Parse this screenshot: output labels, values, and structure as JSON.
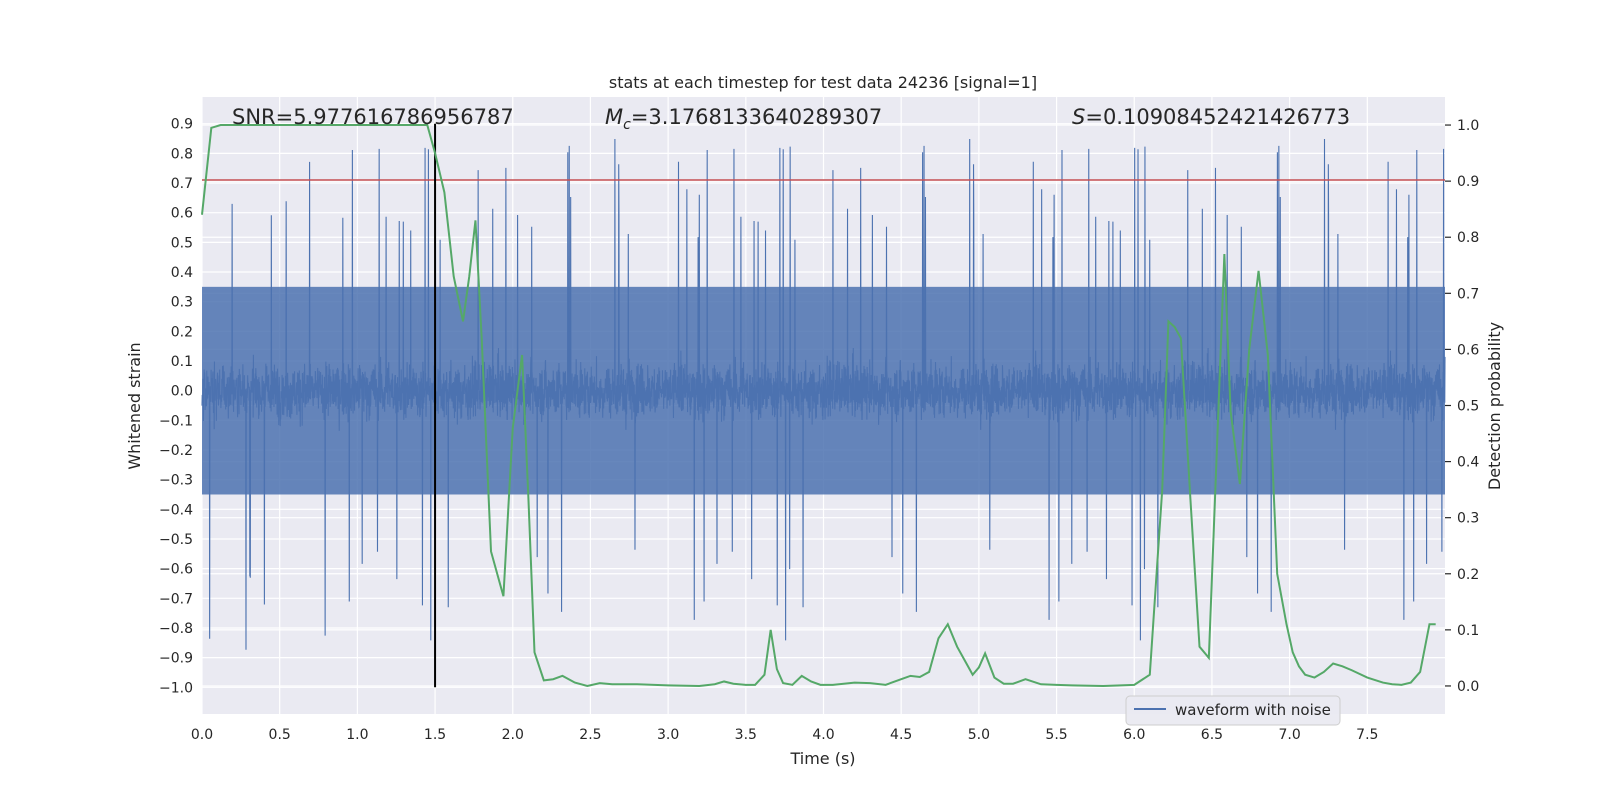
{
  "chart_data": {
    "type": "line",
    "title": "stats at each timestep for test data 24236 [signal=1]",
    "xlabel": "Time (s)",
    "ylabel_left": "Whitened strain",
    "ylabel_right": "Detection probability",
    "xlim": [
      0.0,
      8.0
    ],
    "ylim_left": [
      -1.09,
      0.99
    ],
    "ylim_right": [
      -0.05,
      1.05
    ],
    "x_ticks": [
      "0.0",
      "0.5",
      "1.0",
      "1.5",
      "2.0",
      "2.5",
      "3.0",
      "3.5",
      "4.0",
      "4.5",
      "5.0",
      "5.5",
      "6.0",
      "6.5",
      "7.0",
      "7.5"
    ],
    "x_tick_values": [
      0.0,
      0.5,
      1.0,
      1.5,
      2.0,
      2.5,
      3.0,
      3.5,
      4.0,
      4.5,
      5.0,
      5.5,
      6.0,
      6.5,
      7.0,
      7.5
    ],
    "y_left_ticks": [
      "0.9",
      "0.8",
      "0.7",
      "0.6",
      "0.5",
      "0.4",
      "0.3",
      "0.2",
      "0.1",
      "0.0",
      "−0.1",
      "−0.2",
      "−0.3",
      "−0.4",
      "−0.5",
      "−0.6",
      "−0.7",
      "−0.8",
      "−0.9",
      "−1.0"
    ],
    "y_left_tick_values": [
      0.9,
      0.8,
      0.7,
      0.6,
      0.5,
      0.4,
      0.3,
      0.2,
      0.1,
      0.0,
      -0.1,
      -0.2,
      -0.3,
      -0.4,
      -0.5,
      -0.6,
      -0.7,
      -0.8,
      -0.9,
      -1.0
    ],
    "y_right_ticks": [
      "1.0",
      "0.9",
      "0.8",
      "0.7",
      "0.6",
      "0.5",
      "0.4",
      "0.3",
      "0.2",
      "0.1",
      "0.0"
    ],
    "y_right_tick_values": [
      1.0,
      0.9,
      0.8,
      0.7,
      0.6,
      0.5,
      0.4,
      0.3,
      0.2,
      0.1,
      0.0
    ],
    "annotations": {
      "snr": "SNR=5.977616786956787",
      "mc_symbol": "M",
      "mc_sub": "c",
      "mc_value": "=3.1768133640289307",
      "s_symbol": "S",
      "s_value": "=0.10908452421426773"
    },
    "legend": {
      "label": "waveform with noise",
      "position": "lower right"
    },
    "grid": true,
    "series": [
      {
        "name": "waveform with noise",
        "axis": "left",
        "color": "#4c72b0",
        "style": "dense noise",
        "band": [
          -0.35,
          0.35
        ],
        "spike_range": [
          -1.0,
          0.9
        ]
      },
      {
        "axis": "right",
        "color": "#55a868",
        "x": [
          0.0,
          0.06,
          0.12,
          0.2,
          0.3,
          0.5,
          0.7,
          0.9,
          1.1,
          1.3,
          1.45,
          1.5,
          1.56,
          1.62,
          1.68,
          1.72,
          1.76,
          1.8,
          1.86,
          1.94,
          2.0,
          2.06,
          2.1,
          2.14,
          2.2,
          2.26,
          2.32,
          2.4,
          2.48,
          2.56,
          2.64,
          2.8,
          3.0,
          3.2,
          3.3,
          3.36,
          3.42,
          3.5,
          3.56,
          3.62,
          3.66,
          3.7,
          3.74,
          3.8,
          3.86,
          3.92,
          3.98,
          4.06,
          4.2,
          4.3,
          4.4,
          4.5,
          4.56,
          4.62,
          4.68,
          4.74,
          4.8,
          4.86,
          4.92,
          4.96,
          5.0,
          5.04,
          5.1,
          5.16,
          5.22,
          5.3,
          5.4,
          5.5,
          5.6,
          5.8,
          6.0,
          6.1,
          6.18,
          6.22,
          6.26,
          6.3,
          6.36,
          6.42,
          6.48,
          6.54,
          6.58,
          6.62,
          6.68,
          6.74,
          6.8,
          6.86,
          6.92,
          6.98,
          7.02,
          7.06,
          7.1,
          7.16,
          7.22,
          7.28,
          7.34,
          7.4,
          7.5,
          7.6,
          7.66,
          7.72,
          7.78,
          7.84,
          7.9,
          7.94
        ],
        "values": [
          0.84,
          0.995,
          1.0,
          1.0,
          1.0,
          1.0,
          1.0,
          1.0,
          1.0,
          1.0,
          1.0,
          0.95,
          0.88,
          0.73,
          0.65,
          0.73,
          0.83,
          0.62,
          0.24,
          0.16,
          0.46,
          0.59,
          0.34,
          0.06,
          0.01,
          0.012,
          0.018,
          0.006,
          0.0,
          0.005,
          0.003,
          0.003,
          0.001,
          0.0,
          0.003,
          0.008,
          0.004,
          0.002,
          0.002,
          0.02,
          0.1,
          0.03,
          0.005,
          0.002,
          0.018,
          0.008,
          0.002,
          0.002,
          0.006,
          0.005,
          0.002,
          0.012,
          0.018,
          0.016,
          0.025,
          0.085,
          0.11,
          0.07,
          0.04,
          0.02,
          0.033,
          0.058,
          0.015,
          0.004,
          0.004,
          0.012,
          0.003,
          0.002,
          0.001,
          0.0,
          0.002,
          0.02,
          0.35,
          0.65,
          0.64,
          0.62,
          0.34,
          0.07,
          0.05,
          0.48,
          0.77,
          0.49,
          0.36,
          0.6,
          0.74,
          0.59,
          0.2,
          0.11,
          0.06,
          0.035,
          0.02,
          0.015,
          0.025,
          0.04,
          0.035,
          0.028,
          0.015,
          0.006,
          0.003,
          0.002,
          0.006,
          0.025,
          0.11,
          0.11
        ]
      },
      {
        "axis": "left",
        "color": "#c44e52",
        "type": "hline",
        "value": 0.71
      },
      {
        "axis": "left",
        "color": "#000000",
        "type": "vline",
        "x": 1.5,
        "y_range": [
          -1.0,
          0.9
        ]
      }
    ]
  }
}
